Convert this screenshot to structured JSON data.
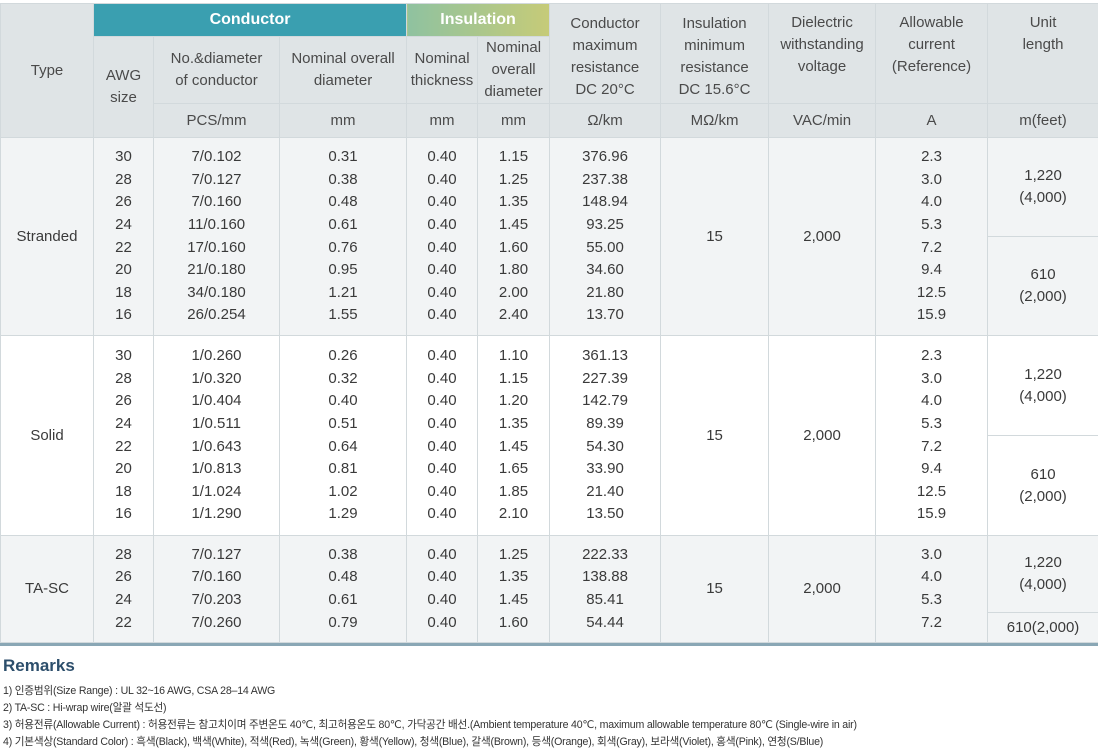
{
  "header": {
    "type": "Type",
    "conductor_band": "Conductor",
    "insulation_band": "Insulation",
    "awg": [
      "AWG",
      "size"
    ],
    "no_diameter": [
      "No.&diameter",
      "of conductor"
    ],
    "nominal_overall_diameter": [
      "Nominal overall",
      "diameter"
    ],
    "nominal_thickness": [
      "Nominal",
      "thickness"
    ],
    "ins_overall_diameter": [
      "Nominal",
      "overall",
      "diameter"
    ],
    "conductor_resistance": [
      "Conductor",
      "maximum",
      "resistance",
      "DC 20°C"
    ],
    "insulation_resistance": [
      "Insulation",
      "minimum",
      "resistance",
      "DC 15.6°C"
    ],
    "dielectric": [
      "Dielectric",
      "withstanding",
      "voltage"
    ],
    "allowable_current": [
      "Allowable",
      "current",
      "(Reference)"
    ],
    "unit_length": [
      "Unit",
      "length"
    ],
    "units": {
      "no_diameter": "PCS/mm",
      "nominal_overall_diameter": "mm",
      "nominal_thickness": "mm",
      "ins_overall_diameter": "mm",
      "conductor_resistance": "Ω/km",
      "insulation_resistance": "MΩ/km",
      "dielectric": "VAC/min",
      "allowable_current": "A",
      "unit_length": "m(feet)"
    }
  },
  "groups": [
    {
      "type": "Stranded",
      "awg": [
        "30",
        "28",
        "26",
        "24",
        "22",
        "20",
        "18",
        "16"
      ],
      "no_diameter": [
        "7/0.102",
        "7/0.127",
        "7/0.160",
        "11/0.160",
        "17/0.160",
        "21/0.180",
        "34/0.180",
        "26/0.254"
      ],
      "overall_diameter": [
        "0.31",
        "0.38",
        "0.48",
        "0.61",
        "0.76",
        "0.95",
        "1.21",
        "1.55"
      ],
      "thickness": [
        "0.40",
        "0.40",
        "0.40",
        "0.40",
        "0.40",
        "0.40",
        "0.40",
        "0.40"
      ],
      "ins_diameter": [
        "1.15",
        "1.25",
        "1.35",
        "1.45",
        "1.60",
        "1.80",
        "2.00",
        "2.40"
      ],
      "resistance": [
        "376.96",
        "237.38",
        "148.94",
        "93.25",
        "55.00",
        "34.60",
        "21.80",
        "13.70"
      ],
      "insulation_resistance": "15",
      "dielectric": "2,000",
      "current": [
        "2.3",
        "3.0",
        "4.0",
        "5.3",
        "7.2",
        "9.4",
        "12.5",
        "15.9"
      ],
      "unit_length": [
        [
          "1,220",
          "(4,000)"
        ],
        [
          "610",
          "(2,000)"
        ]
      ]
    },
    {
      "type": "Solid",
      "awg": [
        "30",
        "28",
        "26",
        "24",
        "22",
        "20",
        "18",
        "16"
      ],
      "no_diameter": [
        "1/0.260",
        "1/0.320",
        "1/0.404",
        "1/0.511",
        "1/0.643",
        "1/0.813",
        "1/1.024",
        "1/1.290"
      ],
      "overall_diameter": [
        "0.26",
        "0.32",
        "0.40",
        "0.51",
        "0.64",
        "0.81",
        "1.02",
        "1.29"
      ],
      "thickness": [
        "0.40",
        "0.40",
        "0.40",
        "0.40",
        "0.40",
        "0.40",
        "0.40",
        "0.40"
      ],
      "ins_diameter": [
        "1.10",
        "1.15",
        "1.20",
        "1.35",
        "1.45",
        "1.65",
        "1.85",
        "2.10"
      ],
      "resistance": [
        "361.13",
        "227.39",
        "142.79",
        "89.39",
        "54.30",
        "33.90",
        "21.40",
        "13.50"
      ],
      "insulation_resistance": "15",
      "dielectric": "2,000",
      "current": [
        "2.3",
        "3.0",
        "4.0",
        "5.3",
        "7.2",
        "9.4",
        "12.5",
        "15.9"
      ],
      "unit_length": [
        [
          "1,220",
          "(4,000)"
        ],
        [
          "610",
          "(2,000)"
        ]
      ]
    },
    {
      "type": "TA-SC",
      "awg": [
        "28",
        "26",
        "24",
        "22"
      ],
      "no_diameter": [
        "7/0.127",
        "7/0.160",
        "7/0.203",
        "7/0.260"
      ],
      "overall_diameter": [
        "0.38",
        "0.48",
        "0.61",
        "0.79"
      ],
      "thickness": [
        "0.40",
        "0.40",
        "0.40",
        "0.40"
      ],
      "ins_diameter": [
        "1.25",
        "1.35",
        "1.45",
        "1.60"
      ],
      "resistance": [
        "222.33",
        "138.88",
        "85.41",
        "54.44"
      ],
      "insulation_resistance": "15",
      "dielectric": "2,000",
      "current": [
        "3.0",
        "4.0",
        "5.3",
        "7.2"
      ],
      "unit_length": [
        [
          "1,220",
          "(4,000)"
        ],
        [
          "610(2,000)"
        ]
      ]
    }
  ],
  "remarks": {
    "title": "Remarks",
    "items": [
      "1) 인증범위(Size Range) : UL 32~16 AWG, CSA 28–14 AWG",
      "2) TA-SC : Hi-wrap wire(알괄 석도선)",
      "3) 허용전류(Allowable Current) : 허용전류는 참고치이며 주변온도 40℃, 최고허용온도 80℃, 가닥공간 배선.(Ambient temperature 40℃, maximum allowable temperature 80℃ (Single-wire in air)",
      "4) 기본색상(Standard Color) : 흑색(Black), 백색(White), 적색(Red), 녹색(Green), 황색(Yellow), 청색(Blue), 갈색(Brown), 등색(Orange), 회색(Gray), 보라색(Violet), 홍색(Pink), 연청(S/Blue)"
    ]
  },
  "colors": {
    "conductor_band": "#3a9fb0",
    "insulation_band_start": "#8fc2a0",
    "insulation_band_end": "#c6cb78",
    "header_bg": "#dfe4e6",
    "grid": "#d2d9dc",
    "remarks_title": "#2c4e6b"
  }
}
